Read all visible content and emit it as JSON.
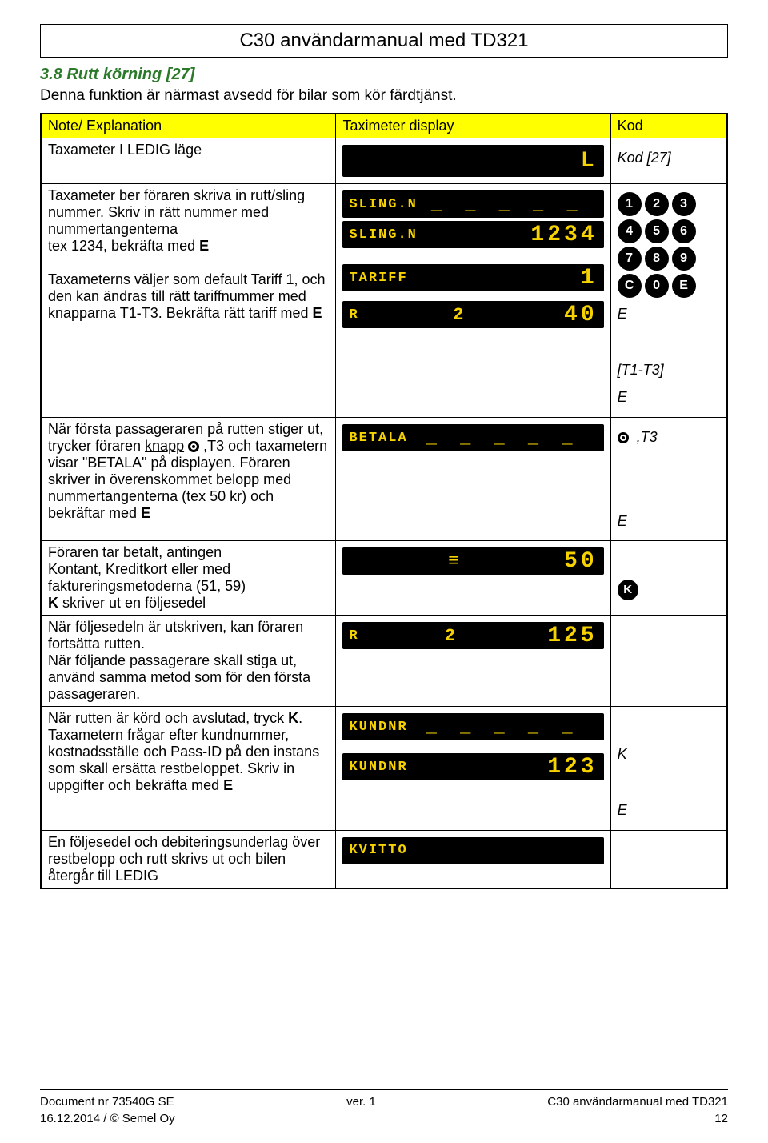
{
  "header": {
    "title": "C30 användarmanual med TD321"
  },
  "section": {
    "heading": "3.8  Rutt körning [27]",
    "intro": "Denna funktion är närmast avsedd för bilar som kör färdtjänst."
  },
  "table": {
    "head": {
      "c1": "Note/ Explanation",
      "c2": "Taximeter display",
      "c3": "Kod"
    },
    "rows": [
      {
        "note": "Taxameter I LEDIG läge",
        "display": [
          {
            "label": "",
            "mid": "",
            "val": "L",
            "tall": true
          }
        ],
        "kod": {
          "text": "Kod [27]",
          "italic": true
        }
      },
      {
        "note_html": "Taxameter ber föraren skriva in rutt/sling nummer. Skriv in rätt nummer med nummertangenterna<br>tex 1234, bekräfta med <b>E</b><br><br>Taxameterns väljer som default Tariff 1, och den kan ändras till rätt tariffnummer med knapparna T1-T3. Bekräfta rätt tariff med <b>E</b>",
        "display": [
          {
            "label": "SLING.N",
            "mid": "_ _ _ _ _",
            "val": ""
          },
          {
            "label": "SLING.N",
            "mid": "",
            "val": "1234"
          },
          {
            "spacer": 12
          },
          {
            "label": "TARIFF",
            "mid": "",
            "val": "1"
          },
          {
            "spacer": 4
          },
          {
            "label": "R",
            "mid": "2",
            "val": "40"
          }
        ],
        "kod": {
          "keypad": [
            "1",
            "2",
            "3",
            "4",
            "5",
            "6",
            "7",
            "8",
            "9",
            "C",
            "0",
            "E"
          ],
          "lines": [
            "<i>E</i>",
            "",
            "<i>[T1-T3]</i>",
            "<i>E</i>"
          ]
        }
      },
      {
        "note_html": "När första passageraren på rutten stiger ut, trycker föraren <u>knapp</u> <span class='stop-dot'></span> ,T3  och taxametern visar \"BETALA\" på displayen. Föraren skriver in överenskommet belopp med nummertangenterna (tex 50 kr) och bekräftar med <b>E</b>",
        "display": [
          {
            "label": "BETALA",
            "mid": "_ _ _ _ _",
            "val": ""
          }
        ],
        "kod": {
          "lines": [
            "<span class='stop-dot'></span>&nbsp;&nbsp;<i>,T3</i>",
            "",
            "",
            "<i>E</i>"
          ]
        }
      },
      {
        "note_html": "Föraren tar betalt, antingen<br>Kontant, Kreditkort eller med faktureringsmetoderna (51, 59)<br><b>K</b> skriver ut en följesedel",
        "display": [
          {
            "label": "",
            "mid": "≡",
            "val": "50"
          }
        ],
        "kod": {
          "lines": [
            "",
            "<span class='circle-K'>K</span>"
          ]
        }
      },
      {
        "note_html": "När följesedeln är utskriven, kan föraren fortsätta rutten.<br>När följande passagerare skall stiga ut, använd samma metod som för den första passageraren.",
        "display": [
          {
            "label": "R",
            "mid": "2",
            "val": "125"
          }
        ],
        "kod": {
          "lines": []
        }
      },
      {
        "note_html": "När rutten är körd och avslutad, <u>tryck <b>K</b></u>. Taxametern frågar efter kundnummer, kostnadsställe och Pass-ID på den instans som skall ersätta restbeloppet. Skriv in uppgifter och bekräfta med <b>E</b>",
        "display": [
          {
            "label": "KUNDNR",
            "mid": "_ _ _ _ _",
            "val": ""
          },
          {
            "spacer": 8
          },
          {
            "label": "KUNDNR",
            "mid": "",
            "val": "123"
          }
        ],
        "kod": {
          "lines": [
            "",
            "<i>K</i>",
            "",
            "<i>E</i>"
          ]
        }
      },
      {
        "note_html": "En följesedel och debiteringsunderlag över restbelopp och rutt skrivs ut och bilen återgår till LEDIG",
        "display": [
          {
            "label": "KVITTO",
            "mid": "",
            "val": ""
          }
        ],
        "kod": {
          "lines": []
        }
      }
    ]
  },
  "footer": {
    "left": "Document nr 73540G    SE\n16.12.2014 / © Semel Oy",
    "center": "ver. 1",
    "right": "C30 användarmanual med TD321\n12"
  }
}
